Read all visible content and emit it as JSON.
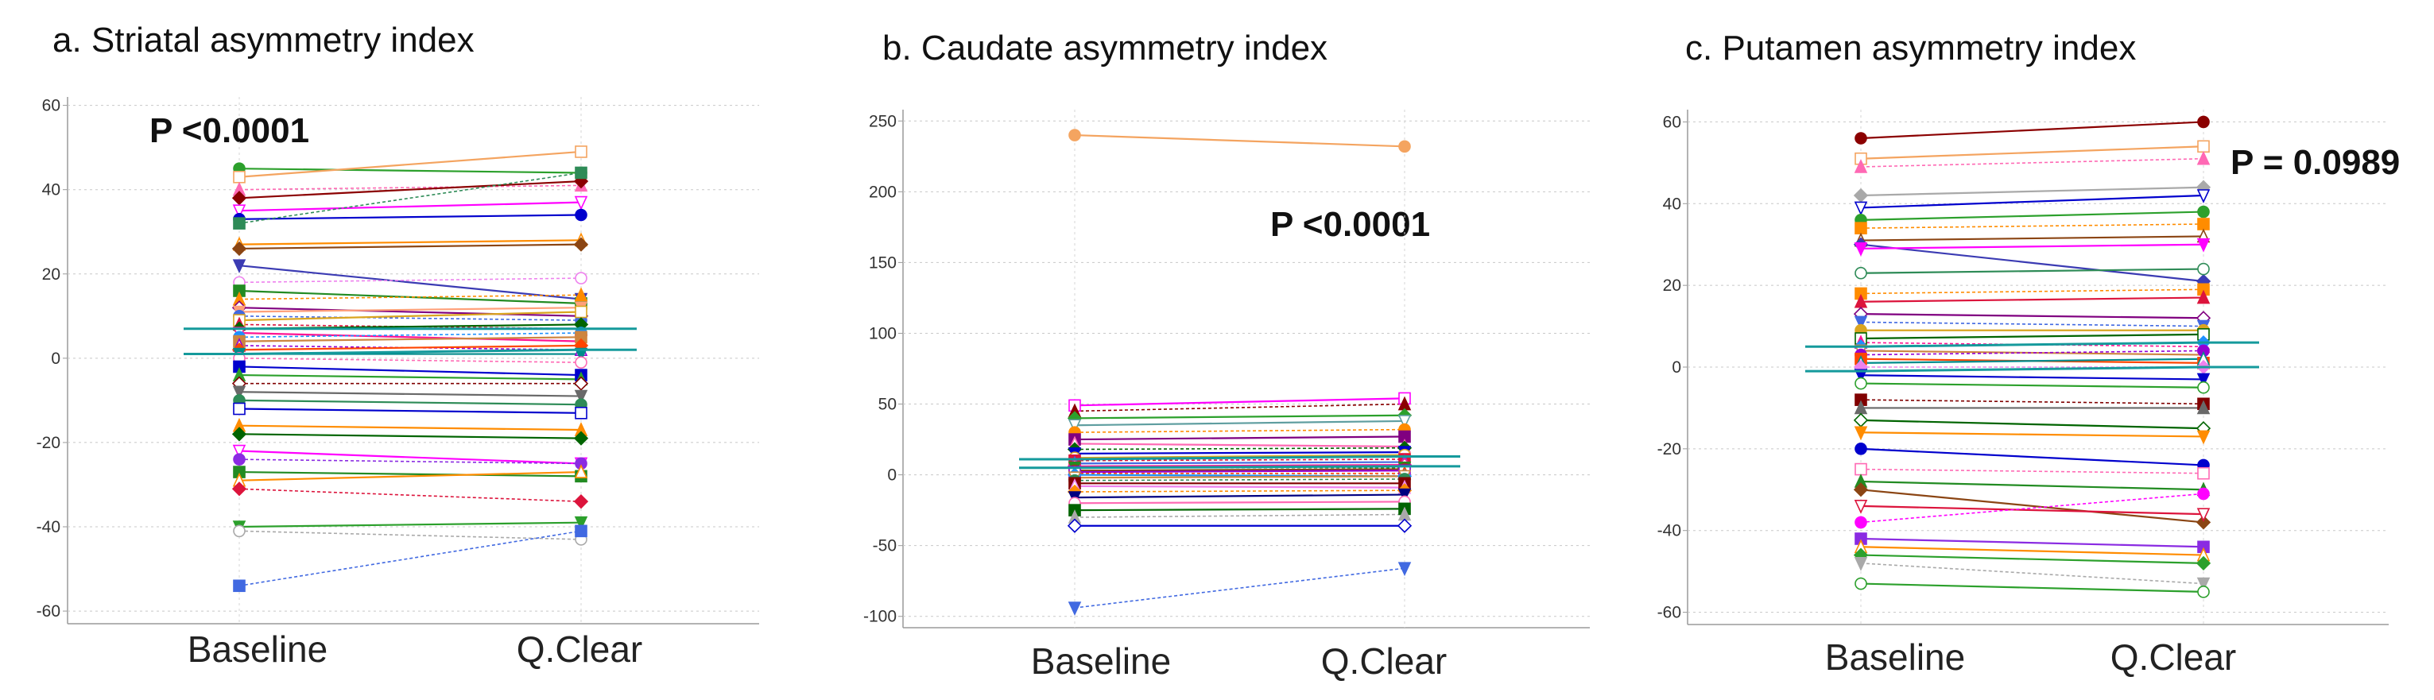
{
  "chart_data": [
    {
      "type": "line",
      "subtype": "paired-dot",
      "title": "a. Striatal asymmetry index",
      "p_value": "P <0.0001",
      "categories": [
        "Baseline",
        "Q.Clear"
      ],
      "ylim": [
        -63,
        62
      ],
      "yticks": [
        60,
        40,
        20,
        0,
        -20,
        -40,
        -60
      ],
      "grid": true,
      "means": [
        [
          7,
          7
        ],
        [
          1,
          2
        ]
      ],
      "series": [
        {
          "values": [
            45,
            44
          ],
          "color": "#2ca02c",
          "style": "solid"
        },
        {
          "values": [
            43,
            49
          ],
          "color": "#f4a460",
          "style": "solid"
        },
        {
          "values": [
            40,
            41
          ],
          "color": "#ff69b4",
          "style": "dashed"
        },
        {
          "values": [
            38,
            42
          ],
          "color": "#8b0000",
          "style": "solid"
        },
        {
          "values": [
            35,
            37
          ],
          "color": "#ff00ff",
          "style": "solid"
        },
        {
          "values": [
            33,
            34
          ],
          "color": "#0000cd",
          "style": "solid"
        },
        {
          "values": [
            32,
            44
          ],
          "color": "#2e8b57",
          "style": "dashed"
        },
        {
          "values": [
            27,
            28
          ],
          "color": "#ff8c00",
          "style": "solid"
        },
        {
          "values": [
            26,
            27
          ],
          "color": "#8b4513",
          "style": "solid"
        },
        {
          "values": [
            22,
            14
          ],
          "color": "#3b3bb3",
          "style": "solid"
        },
        {
          "values": [
            18,
            19
          ],
          "color": "#ee82ee",
          "style": "dashed"
        },
        {
          "values": [
            16,
            13
          ],
          "color": "#228b22",
          "style": "solid"
        },
        {
          "values": [
            14,
            15
          ],
          "color": "#ff8c00",
          "style": "dashed"
        },
        {
          "values": [
            12,
            10
          ],
          "color": "#800080",
          "style": "solid"
        },
        {
          "values": [
            11,
            12
          ],
          "color": "#ffa07a",
          "style": "solid"
        },
        {
          "values": [
            10,
            9
          ],
          "color": "#4169e1",
          "style": "dashed"
        },
        {
          "values": [
            9,
            11
          ],
          "color": "#daa520",
          "style": "solid"
        },
        {
          "values": [
            8,
            7
          ],
          "color": "#dc143c",
          "style": "dashed"
        },
        {
          "values": [
            7,
            8
          ],
          "color": "#006400",
          "style": "solid"
        },
        {
          "values": [
            6,
            4
          ],
          "color": "#ff1493",
          "style": "solid"
        },
        {
          "values": [
            5,
            6
          ],
          "color": "#1e90ff",
          "style": "dashed"
        },
        {
          "values": [
            4,
            5
          ],
          "color": "#cd853f",
          "style": "solid"
        },
        {
          "values": [
            3,
            2
          ],
          "color": "#9400d3",
          "style": "dashed"
        },
        {
          "values": [
            2,
            3
          ],
          "color": "#ff4500",
          "style": "solid"
        },
        {
          "values": [
            1,
            1
          ],
          "color": "#008b8b",
          "style": "solid"
        },
        {
          "values": [
            0,
            -1
          ],
          "color": "#ff69b4",
          "style": "dashed"
        },
        {
          "values": [
            -2,
            -4
          ],
          "color": "#0000cd",
          "style": "solid"
        },
        {
          "values": [
            -4,
            -5
          ],
          "color": "#2ca02c",
          "style": "solid"
        },
        {
          "values": [
            -6,
            -6
          ],
          "color": "#800000",
          "style": "dashed"
        },
        {
          "values": [
            -8,
            -9
          ],
          "color": "#696969",
          "style": "solid"
        },
        {
          "values": [
            -10,
            -11
          ],
          "color": "#2e8b57",
          "style": "solid"
        },
        {
          "values": [
            -12,
            -13
          ],
          "color": "#0000cd",
          "style": "solid"
        },
        {
          "values": [
            -16,
            -17
          ],
          "color": "#ff8c00",
          "style": "solid"
        },
        {
          "values": [
            -18,
            -19
          ],
          "color": "#006400",
          "style": "solid"
        },
        {
          "values": [
            -22,
            -25
          ],
          "color": "#ff00ff",
          "style": "solid"
        },
        {
          "values": [
            -24,
            -25
          ],
          "color": "#8a2be2",
          "style": "dashed"
        },
        {
          "values": [
            -27,
            -28
          ],
          "color": "#228b22",
          "style": "solid"
        },
        {
          "values": [
            -29,
            -27
          ],
          "color": "#ff8c00",
          "style": "solid"
        },
        {
          "values": [
            -31,
            -34
          ],
          "color": "#dc143c",
          "style": "dashed"
        },
        {
          "values": [
            -40,
            -39
          ],
          "color": "#2ca02c",
          "style": "solid"
        },
        {
          "values": [
            -41,
            -43
          ],
          "color": "#a9a9a9",
          "style": "dashed"
        },
        {
          "values": [
            -54,
            -41
          ],
          "color": "#4169e1",
          "style": "dashed"
        }
      ]
    },
    {
      "type": "line",
      "subtype": "paired-dot",
      "title": "b. Caudate asymmetry index",
      "p_value": "P <0.0001",
      "categories": [
        "Baseline",
        "Q.Clear"
      ],
      "ylim": [
        -108,
        258
      ],
      "yticks": [
        250,
        200,
        150,
        100,
        50,
        0,
        -50,
        -100
      ],
      "grid": true,
      "means": [
        [
          11,
          13
        ],
        [
          5,
          6
        ]
      ],
      "series": [
        {
          "values": [
            240,
            232
          ],
          "color": "#f4a460",
          "style": "solid"
        },
        {
          "values": [
            49,
            54
          ],
          "color": "#ff00ff",
          "style": "solid"
        },
        {
          "values": [
            45,
            50
          ],
          "color": "#8b0000",
          "style": "dashed"
        },
        {
          "values": [
            40,
            42
          ],
          "color": "#2ca02c",
          "style": "solid"
        },
        {
          "values": [
            35,
            38
          ],
          "color": "#5f9ea0",
          "style": "solid"
        },
        {
          "values": [
            30,
            32
          ],
          "color": "#ff8c00",
          "style": "dashed"
        },
        {
          "values": [
            25,
            27
          ],
          "color": "#800080",
          "style": "solid"
        },
        {
          "values": [
            22,
            20
          ],
          "color": "#ff69b4",
          "style": "solid"
        },
        {
          "values": [
            18,
            19
          ],
          "color": "#006400",
          "style": "dashed"
        },
        {
          "values": [
            15,
            16
          ],
          "color": "#0000cd",
          "style": "solid"
        },
        {
          "values": [
            12,
            14
          ],
          "color": "#daa520",
          "style": "solid"
        },
        {
          "values": [
            10,
            11
          ],
          "color": "#dc143c",
          "style": "dashed"
        },
        {
          "values": [
            8,
            9
          ],
          "color": "#4169e1",
          "style": "solid"
        },
        {
          "values": [
            6,
            7
          ],
          "color": "#ff1493",
          "style": "solid"
        },
        {
          "values": [
            5,
            5
          ],
          "color": "#228b22",
          "style": "dashed"
        },
        {
          "values": [
            3,
            4
          ],
          "color": "#8b4513",
          "style": "solid"
        },
        {
          "values": [
            2,
            3
          ],
          "color": "#9400d3",
          "style": "solid"
        },
        {
          "values": [
            1,
            1
          ],
          "color": "#ff4500",
          "style": "dashed"
        },
        {
          "values": [
            0,
            -1
          ],
          "color": "#1e90ff",
          "style": "solid"
        },
        {
          "values": [
            -2,
            -1
          ],
          "color": "#cd853f",
          "style": "solid"
        },
        {
          "values": [
            -4,
            -3
          ],
          "color": "#2e8b57",
          "style": "dashed"
        },
        {
          "values": [
            -6,
            -6
          ],
          "color": "#800000",
          "style": "solid"
        },
        {
          "values": [
            -8,
            -9
          ],
          "color": "#ee82ee",
          "style": "solid"
        },
        {
          "values": [
            -12,
            -11
          ],
          "color": "#ff8c00",
          "style": "dashed"
        },
        {
          "values": [
            -16,
            -14
          ],
          "color": "#000080",
          "style": "solid"
        },
        {
          "values": [
            -20,
            -19
          ],
          "color": "#ff69b4",
          "style": "solid"
        },
        {
          "values": [
            -25,
            -24
          ],
          "color": "#006400",
          "style": "solid"
        },
        {
          "values": [
            -30,
            -28
          ],
          "color": "#a9a9a9",
          "style": "dashed"
        },
        {
          "values": [
            -36,
            -36
          ],
          "color": "#0000cd",
          "style": "solid"
        },
        {
          "values": [
            -94,
            -66
          ],
          "color": "#4169e1",
          "style": "dashed"
        }
      ]
    },
    {
      "type": "line",
      "subtype": "paired-dot",
      "title": "c. Putamen asymmetry index",
      "p_value": "P = 0.0989",
      "categories": [
        "Baseline",
        "Q.Clear"
      ],
      "ylim": [
        -63,
        63
      ],
      "yticks": [
        60,
        40,
        20,
        0,
        -20,
        -40,
        -60
      ],
      "grid": true,
      "means": [
        [
          5,
          6
        ],
        [
          -1,
          0
        ]
      ],
      "series": [
        {
          "values": [
            56,
            60
          ],
          "color": "#8b0000",
          "style": "solid"
        },
        {
          "values": [
            51,
            54
          ],
          "color": "#f4a460",
          "style": "solid"
        },
        {
          "values": [
            49,
            51
          ],
          "color": "#ff69b4",
          "style": "dashed"
        },
        {
          "values": [
            42,
            44
          ],
          "color": "#a9a9a9",
          "style": "solid"
        },
        {
          "values": [
            39,
            42
          ],
          "color": "#0000cd",
          "style": "solid"
        },
        {
          "values": [
            36,
            38
          ],
          "color": "#2ca02c",
          "style": "solid"
        },
        {
          "values": [
            34,
            35
          ],
          "color": "#ff8c00",
          "style": "dashed"
        },
        {
          "values": [
            31,
            32
          ],
          "color": "#8b4513",
          "style": "solid"
        },
        {
          "values": [
            30,
            21
          ],
          "color": "#3b3bb3",
          "style": "solid"
        },
        {
          "values": [
            29,
            30
          ],
          "color": "#ff00ff",
          "style": "solid"
        },
        {
          "values": [
            23,
            24
          ],
          "color": "#2e8b57",
          "style": "solid"
        },
        {
          "values": [
            18,
            19
          ],
          "color": "#ff8c00",
          "style": "dashed"
        },
        {
          "values": [
            16,
            17
          ],
          "color": "#dc143c",
          "style": "solid"
        },
        {
          "values": [
            13,
            12
          ],
          "color": "#800080",
          "style": "solid"
        },
        {
          "values": [
            11,
            10
          ],
          "color": "#4169e1",
          "style": "dashed"
        },
        {
          "values": [
            9,
            9
          ],
          "color": "#daa520",
          "style": "solid"
        },
        {
          "values": [
            7,
            8
          ],
          "color": "#006400",
          "style": "solid"
        },
        {
          "values": [
            6,
            5
          ],
          "color": "#ff1493",
          "style": "dashed"
        },
        {
          "values": [
            5,
            6
          ],
          "color": "#1e90ff",
          "style": "solid"
        },
        {
          "values": [
            4,
            3
          ],
          "color": "#cd853f",
          "style": "solid"
        },
        {
          "values": [
            3,
            4
          ],
          "color": "#9400d3",
          "style": "dashed"
        },
        {
          "values": [
            2,
            1
          ],
          "color": "#ff4500",
          "style": "solid"
        },
        {
          "values": [
            1,
            2
          ],
          "color": "#008b8b",
          "style": "solid"
        },
        {
          "values": [
            0,
            0
          ],
          "color": "#ee82ee",
          "style": "dashed"
        },
        {
          "values": [
            -2,
            -3
          ],
          "color": "#0000cd",
          "style": "solid"
        },
        {
          "values": [
            -4,
            -5
          ],
          "color": "#2ca02c",
          "style": "solid"
        },
        {
          "values": [
            -8,
            -9
          ],
          "color": "#800000",
          "style": "dashed"
        },
        {
          "values": [
            -10,
            -10
          ],
          "color": "#696969",
          "style": "solid"
        },
        {
          "values": [
            -13,
            -15
          ],
          "color": "#006400",
          "style": "solid"
        },
        {
          "values": [
            -16,
            -17
          ],
          "color": "#ff8c00",
          "style": "solid"
        },
        {
          "values": [
            -20,
            -24
          ],
          "color": "#0000cd",
          "style": "solid"
        },
        {
          "values": [
            -25,
            -26
          ],
          "color": "#ff69b4",
          "style": "dashed"
        },
        {
          "values": [
            -28,
            -30
          ],
          "color": "#228b22",
          "style": "solid"
        },
        {
          "values": [
            -30,
            -38
          ],
          "color": "#8b4513",
          "style": "solid"
        },
        {
          "values": [
            -34,
            -36
          ],
          "color": "#dc143c",
          "style": "solid"
        },
        {
          "values": [
            -38,
            -31
          ],
          "color": "#ff00ff",
          "style": "dashed"
        },
        {
          "values": [
            -42,
            -44
          ],
          "color": "#8a2be2",
          "style": "solid"
        },
        {
          "values": [
            -44,
            -46
          ],
          "color": "#ff8c00",
          "style": "solid"
        },
        {
          "values": [
            -46,
            -48
          ],
          "color": "#2ca02c",
          "style": "solid"
        },
        {
          "values": [
            -48,
            -53
          ],
          "color": "#a9a9a9",
          "style": "dashed"
        },
        {
          "values": [
            -53,
            -55
          ],
          "color": "#2ca02c",
          "style": "solid"
        }
      ]
    }
  ]
}
